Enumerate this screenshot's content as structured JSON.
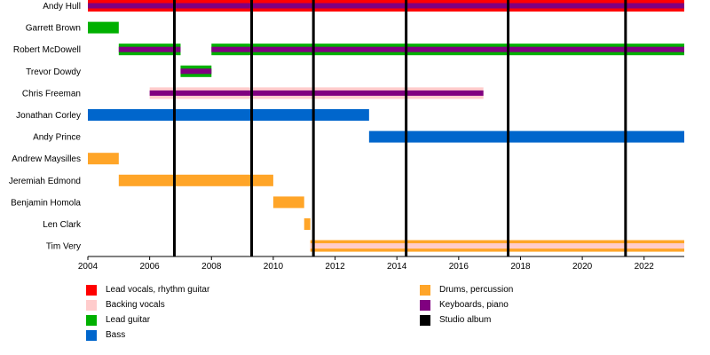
{
  "chart_data": {
    "type": "timeline",
    "xlim": [
      2004,
      2023.3
    ],
    "x_ticks": [
      2004,
      2006,
      2008,
      2010,
      2012,
      2014,
      2016,
      2018,
      2020,
      2022
    ],
    "grid": false,
    "members": [
      {
        "name": "Andy Hull",
        "roles": [
          "Lead vocals, rhythm guitar",
          "Keyboards, piano"
        ],
        "periods": [
          [
            2004,
            2023.3
          ]
        ]
      },
      {
        "name": "Garrett Brown",
        "roles": [
          "Lead guitar"
        ],
        "periods": [
          [
            2004,
            2005
          ]
        ]
      },
      {
        "name": "Robert McDowell",
        "roles": [
          "Lead guitar",
          "Keyboards, piano"
        ],
        "periods": [
          [
            2005,
            2007
          ],
          [
            2008,
            2023.3
          ]
        ]
      },
      {
        "name": "Trevor Dowdy",
        "roles": [
          "Lead guitar",
          "Keyboards, piano"
        ],
        "periods": [
          [
            2007,
            2008
          ]
        ]
      },
      {
        "name": "Chris Freeman",
        "roles": [
          "Backing vocals",
          "Keyboards, piano"
        ],
        "periods": [
          [
            2006,
            2016.8
          ]
        ]
      },
      {
        "name": "Jonathan Corley",
        "roles": [
          "Bass"
        ],
        "periods": [
          [
            2004,
            2013.1
          ]
        ]
      },
      {
        "name": "Andy Prince",
        "roles": [
          "Bass"
        ],
        "periods": [
          [
            2013.1,
            2023.3
          ]
        ]
      },
      {
        "name": "Andrew Maysilles",
        "roles": [
          "Drums, percussion"
        ],
        "periods": [
          [
            2004,
            2005
          ]
        ]
      },
      {
        "name": "Jeremiah Edmond",
        "roles": [
          "Drums, percussion"
        ],
        "periods": [
          [
            2005,
            2010
          ]
        ]
      },
      {
        "name": "Benjamin Homola",
        "roles": [
          "Drums, percussion"
        ],
        "periods": [
          [
            2010,
            2011
          ]
        ]
      },
      {
        "name": "Len Clark",
        "roles": [
          "Drums, percussion"
        ],
        "periods": [
          [
            2011,
            2011.2
          ]
        ]
      },
      {
        "name": "Tim Very",
        "roles": [
          "Drums, percussion",
          "Backing vocals"
        ],
        "periods": [
          [
            2011.2,
            2023.3
          ]
        ]
      }
    ],
    "studio_albums": [
      2006.8,
      2009.3,
      2011.3,
      2014.3,
      2017.6,
      2021.4
    ],
    "legend_placement": "bottom",
    "legend": [
      {
        "label": "Lead vocals, rhythm guitar",
        "color": "#ff0000"
      },
      {
        "label": "Backing vocals",
        "color": "#ffcccc"
      },
      {
        "label": "Lead guitar",
        "color": "#00b000"
      },
      {
        "label": "Bass",
        "color": "#0066cc"
      },
      {
        "label": "Drums, percussion",
        "color": "#ffa528"
      },
      {
        "label": "Keyboards, piano",
        "color": "#800080"
      },
      {
        "label": "Studio album",
        "color": "#000000"
      }
    ]
  }
}
